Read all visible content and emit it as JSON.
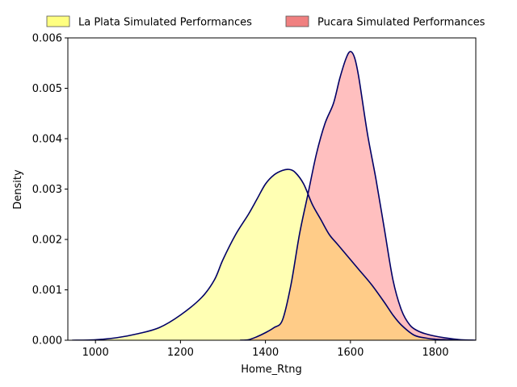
{
  "chart_data": {
    "type": "area",
    "xlabel": "Home_Rtng",
    "ylabel": "Density",
    "xlim": [
      935,
      1895
    ],
    "ylim": [
      0,
      0.006
    ],
    "xticks": [
      1000,
      1200,
      1400,
      1600,
      1800
    ],
    "xtick_labels": [
      "1000",
      "1200",
      "1400",
      "1600",
      "1800"
    ],
    "yticks": [
      0,
      0.001,
      0.002,
      0.003,
      0.004,
      0.005,
      0.006
    ],
    "ytick_labels": [
      "0.000",
      "0.001",
      "0.002",
      "0.003",
      "0.004",
      "0.005",
      "0.006"
    ],
    "grid": false,
    "legend_position": "top, above plot",
    "outline_color": "#000066",
    "series": [
      {
        "name": "La Plata Simulated Performances",
        "fill": "#ffffb3",
        "legend_fill": "#ffff80",
        "x": [
          945,
          1000,
          1050,
          1100,
          1150,
          1200,
          1250,
          1280,
          1300,
          1330,
          1360,
          1380,
          1400,
          1420,
          1440,
          1455,
          1470,
          1490,
          1510,
          1530,
          1550,
          1570,
          1600,
          1620,
          1650,
          1680,
          1700,
          1720,
          1750,
          1780,
          1800,
          1830,
          1860,
          1890
        ],
        "y": [
          0.0,
          1e-05,
          5e-05,
          0.00013,
          0.00025,
          0.0005,
          0.00085,
          0.0012,
          0.0016,
          0.0021,
          0.0025,
          0.0028,
          0.0031,
          0.00328,
          0.00337,
          0.00339,
          0.00333,
          0.0031,
          0.0027,
          0.0024,
          0.0021,
          0.0019,
          0.0016,
          0.0014,
          0.0011,
          0.00075,
          0.0005,
          0.0003,
          0.0001,
          4e-05,
          2e-05,
          1e-05,
          0.0,
          0.0
        ]
      },
      {
        "name": "Pucara Simulated Performances",
        "fill": "#ffbfbf",
        "legend_fill": "#f08080",
        "x": [
          1340,
          1360,
          1380,
          1400,
          1420,
          1440,
          1460,
          1480,
          1500,
          1520,
          1540,
          1560,
          1575,
          1590,
          1600,
          1610,
          1620,
          1640,
          1660,
          1680,
          1700,
          1720,
          1740,
          1760,
          1780,
          1800,
          1830,
          1860,
          1895
        ],
        "y": [
          0.0,
          1e-05,
          7e-05,
          0.00015,
          0.00025,
          0.0004,
          0.0011,
          0.0021,
          0.0029,
          0.0037,
          0.0043,
          0.0047,
          0.0052,
          0.0056,
          0.00573,
          0.0056,
          0.0052,
          0.0041,
          0.0032,
          0.0022,
          0.0012,
          0.0006,
          0.0003,
          0.00018,
          0.00012,
          8e-05,
          4e-05,
          1e-05,
          0.0
        ]
      }
    ],
    "overlap_fill": "#ffcc88"
  }
}
